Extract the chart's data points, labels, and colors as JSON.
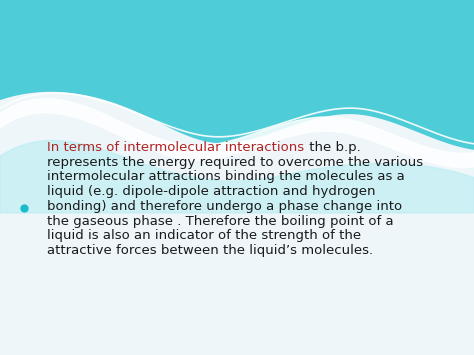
{
  "bg_color": "#eef6fa",
  "wave_top_color": "#4ecdd8",
  "wave_mid_color": "#7ddce6",
  "wave_bottom_color": "#b8edf3",
  "white_color": "#ffffff",
  "bullet_color": "#1abccc",
  "highlight_color": "#b22222",
  "text_color": "#1a1a1a",
  "highlight_text": "In terms of intermolecular interactions",
  "line1_black": " the b.p.",
  "remaining_lines": [
    "represents the energy required to overcome the various",
    "intermolecular attractions binding the molecules as a",
    "liquid (e.g. dipole-dipole attraction and hydrogen",
    "bonding) and therefore undergo a phase change into",
    "the gaseous phase . Therefore the boiling point of a",
    "liquid is also an indicator of the strength of the",
    "attractive forces between the liquid’s molecules."
  ],
  "font_size": 9.5,
  "fig_width": 4.74,
  "fig_height": 3.55,
  "dpi": 100
}
